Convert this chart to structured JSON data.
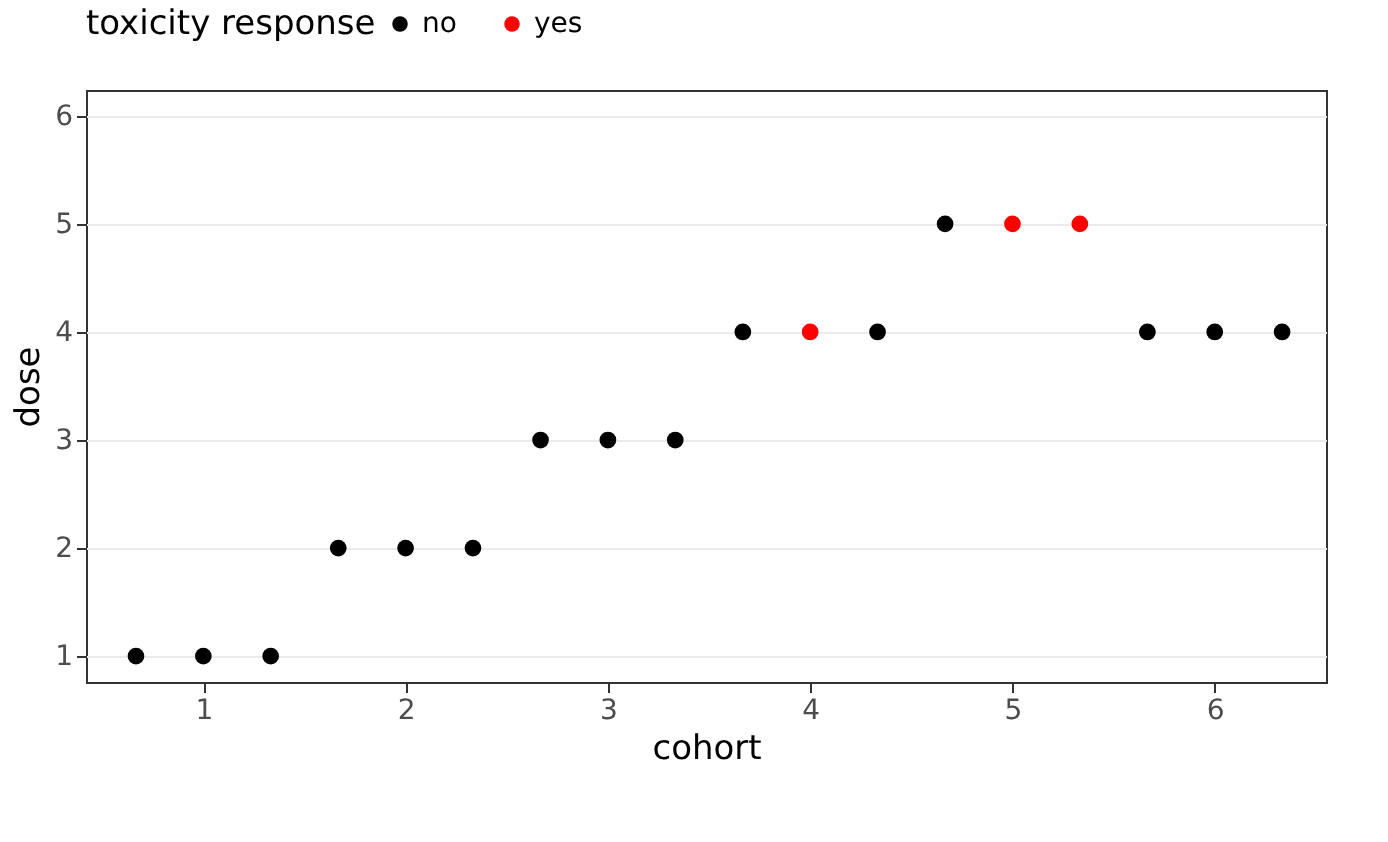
{
  "chart_data": {
    "type": "scatter",
    "xlabel": "cohort",
    "ylabel": "dose",
    "legend_title": "toxicity response",
    "legend": "top",
    "series": [
      {
        "name": "no",
        "color": "#000000",
        "x": [
          0.667,
          1,
          1.333,
          1.667,
          2,
          2.333,
          2.667,
          3,
          3.333,
          3.667,
          4.333,
          4.667,
          5.667,
          6,
          6.333
        ],
        "values": [
          1,
          1,
          1,
          2,
          2,
          2,
          3,
          3,
          3,
          4,
          4,
          5,
          4,
          4,
          4
        ]
      },
      {
        "name": "yes",
        "color": "#ff0000",
        "x": [
          4,
          5,
          5.333
        ],
        "values": [
          4,
          5,
          5
        ]
      }
    ],
    "xlim": [
      0.42,
      6.55
    ],
    "xticks": [
      1,
      2,
      3,
      4,
      5,
      6
    ],
    "ylim": [
      0.76,
      6.24
    ],
    "yticks": [
      1,
      2,
      3,
      4,
      5,
      6
    ],
    "grid": "y",
    "marker": "circle"
  }
}
